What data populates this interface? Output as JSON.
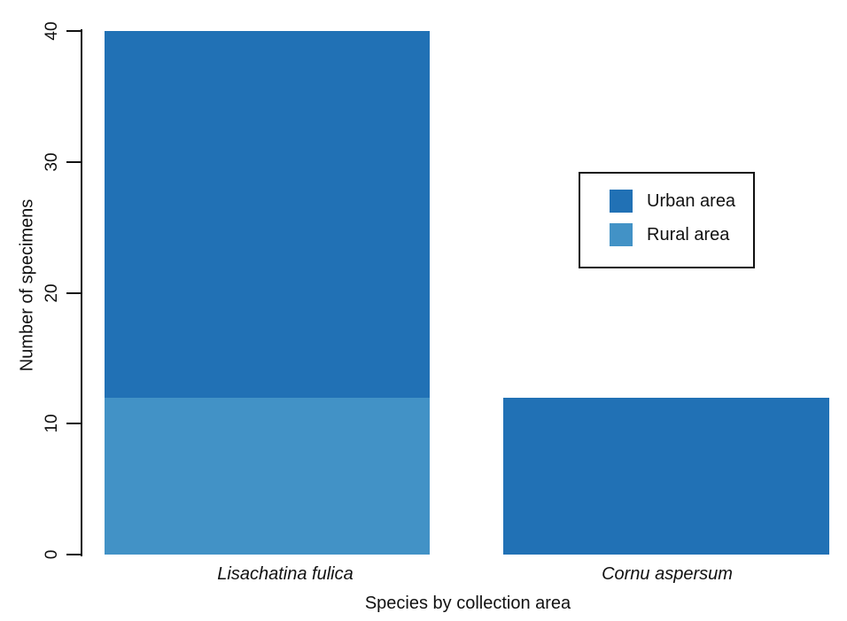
{
  "chart_data": {
    "type": "bar",
    "stacked": true,
    "title": "",
    "xlabel": "Species by collection area",
    "ylabel": "Number of specimens",
    "categories": [
      "Lisachatina fulica",
      "Cornu aspersum"
    ],
    "series": [
      {
        "name": "Urban area",
        "color": "#2171b5",
        "values": [
          28,
          12
        ]
      },
      {
        "name": "Rural area",
        "color": "#4292c6",
        "values": [
          12,
          0
        ]
      }
    ],
    "ylim": [
      0,
      40
    ],
    "yticks": [
      0,
      10,
      20,
      30,
      40
    ],
    "grid": false,
    "legend_position": "right-middle",
    "category_label_style": "italic"
  },
  "legend": {
    "items": [
      {
        "label": "Urban area",
        "color": "#2171b5"
      },
      {
        "label": "Rural area",
        "color": "#4292c6"
      }
    ]
  },
  "colors": {
    "urban": "#2171b5",
    "rural": "#4292c6",
    "axis": "#111111",
    "background": "#ffffff"
  }
}
